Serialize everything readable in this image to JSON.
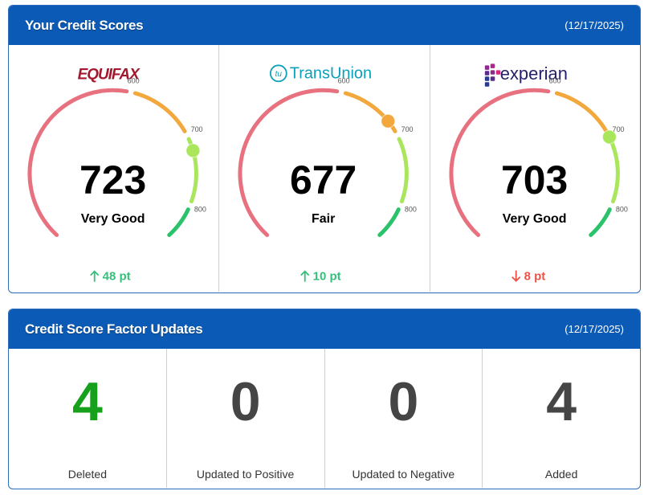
{
  "scores_panel": {
    "title": "Your Credit Scores",
    "date": "(12/17/2025)",
    "gauge": {
      "range": [
        300,
        850
      ],
      "ticks": [
        600,
        700,
        800
      ],
      "band_colors": [
        "#e8717f",
        "#f2a83c",
        "#a9e65c",
        "#2bc26c"
      ]
    },
    "up_color": "#33c07a",
    "down_color": "#ee5145",
    "bureaus": [
      {
        "logo": "EQUIFAX",
        "logo_color": "#a3182d",
        "score": 723,
        "rating": "Very Good",
        "change": "48 pt",
        "direction": "up"
      },
      {
        "logo": "TransUnion",
        "logo_mark": "tu",
        "logo_color": "#0ca0bb",
        "score": 677,
        "rating": "Fair",
        "change": "10 pt",
        "direction": "up"
      },
      {
        "logo": "experian",
        "logo_color": "#25226b",
        "score": 703,
        "rating": "Very Good",
        "change": "8 pt",
        "direction": "down"
      }
    ]
  },
  "factors_panel": {
    "title": "Credit Score Factor Updates",
    "date": "(12/17/2025)",
    "items": [
      {
        "count": 4,
        "label": "Deleted",
        "color": "#16a01c"
      },
      {
        "count": 0,
        "label": "Updated to Positive",
        "color": "#454545"
      },
      {
        "count": 0,
        "label": "Updated to Negative",
        "color": "#454545"
      },
      {
        "count": 4,
        "label": "Added",
        "color": "#454545"
      }
    ]
  }
}
